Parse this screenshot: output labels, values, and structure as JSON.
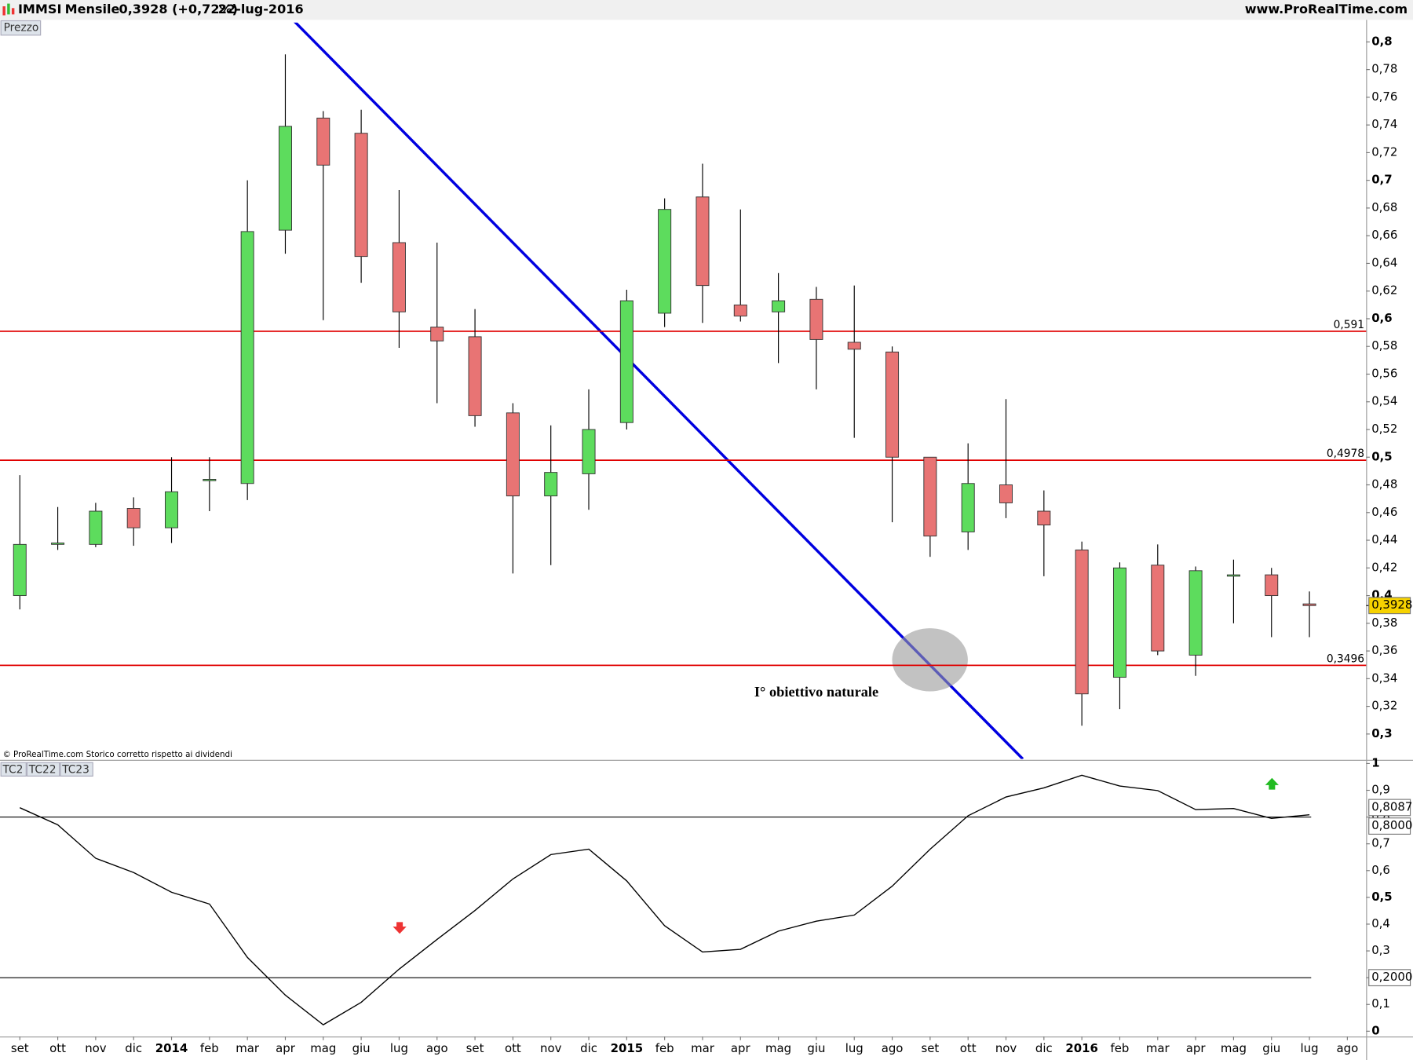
{
  "header": {
    "symbol": "IMMSI",
    "period": "Mensile",
    "quote": "0,3928 (+0,72%)",
    "date": "22-lug-2016",
    "site": "www.ProRealTime.com"
  },
  "chart_data": [
    {
      "type": "candlestick",
      "panel_label": "Prezzo",
      "note": "© ProRealTime.com  Storico corretto rispetto ai dividendi",
      "annotation": "I° obiettivo naturale",
      "categories": [
        "set",
        "ott",
        "nov",
        "dic",
        "2014",
        "feb",
        "mar",
        "apr",
        "mag",
        "giu",
        "lug",
        "ago",
        "set",
        "ott",
        "nov",
        "dic",
        "2015",
        "feb",
        "mar",
        "apr",
        "mag",
        "giu",
        "lug",
        "ago",
        "set",
        "ott",
        "nov",
        "dic",
        "2016",
        "feb",
        "mar",
        "apr",
        "mag",
        "giu",
        "lug",
        "ago"
      ],
      "open": [
        0.4,
        0.438,
        0.437,
        0.463,
        0.449,
        0.484,
        0.481,
        0.664,
        0.745,
        0.734,
        0.655,
        0.594,
        0.587,
        0.532,
        0.472,
        0.488,
        0.525,
        0.604,
        0.688,
        0.61,
        0.605,
        0.614,
        0.583,
        0.576,
        0.5,
        0.446,
        0.48,
        0.461,
        0.433,
        0.341,
        0.422,
        0.357,
        0.415,
        0.415,
        0.394,
        null
      ],
      "high": [
        0.487,
        0.464,
        0.467,
        0.471,
        0.5,
        0.5,
        0.7,
        0.791,
        0.75,
        0.751,
        0.693,
        0.655,
        0.607,
        0.539,
        0.523,
        0.549,
        0.621,
        0.687,
        0.712,
        0.679,
        0.633,
        0.623,
        0.624,
        0.58,
        0.5,
        0.51,
        0.542,
        0.476,
        0.439,
        0.424,
        0.437,
        0.421,
        0.426,
        0.42,
        0.403,
        null
      ],
      "low": [
        0.39,
        0.433,
        0.435,
        0.436,
        0.438,
        0.461,
        0.469,
        0.647,
        0.599,
        0.626,
        0.579,
        0.539,
        0.522,
        0.416,
        0.422,
        0.462,
        0.52,
        0.594,
        0.597,
        0.598,
        0.568,
        0.549,
        0.514,
        0.453,
        0.428,
        0.433,
        0.456,
        0.414,
        0.306,
        0.318,
        0.357,
        0.342,
        0.38,
        0.37,
        0.37,
        null
      ],
      "close": [
        0.437,
        0.438,
        0.461,
        0.449,
        0.475,
        0.484,
        0.663,
        0.739,
        0.711,
        0.645,
        0.605,
        0.584,
        0.53,
        0.472,
        0.489,
        0.52,
        0.613,
        0.679,
        0.624,
        0.602,
        0.613,
        0.585,
        0.578,
        0.5,
        0.443,
        0.481,
        0.467,
        0.451,
        0.329,
        0.42,
        0.36,
        0.418,
        0.415,
        0.4,
        0.3928,
        null
      ],
      "up_color": "#5ddc5d",
      "down_color": "#e87474",
      "ylim": [
        0.282,
        0.814
      ],
      "yticks": [
        {
          "value": 0.3,
          "label": "0,3"
        },
        {
          "value": 0.32,
          "label": "0,32"
        },
        {
          "value": 0.34,
          "label": "0,34"
        },
        {
          "value": 0.36,
          "label": "0,36"
        },
        {
          "value": 0.38,
          "label": "0,38"
        },
        {
          "value": 0.4,
          "label": "0,4"
        },
        {
          "value": 0.42,
          "label": "0,42"
        },
        {
          "value": 0.44,
          "label": "0,44"
        },
        {
          "value": 0.46,
          "label": "0,46"
        },
        {
          "value": 0.48,
          "label": "0,48"
        },
        {
          "value": 0.5,
          "label": "0,5"
        },
        {
          "value": 0.52,
          "label": "0,52"
        },
        {
          "value": 0.54,
          "label": "0,54"
        },
        {
          "value": 0.56,
          "label": "0,56"
        },
        {
          "value": 0.58,
          "label": "0,58"
        },
        {
          "value": 0.6,
          "label": "0,6"
        },
        {
          "value": 0.62,
          "label": "0,62"
        },
        {
          "value": 0.64,
          "label": "0,64"
        },
        {
          "value": 0.66,
          "label": "0,66"
        },
        {
          "value": 0.68,
          "label": "0,68"
        },
        {
          "value": 0.7,
          "label": "0,7"
        },
        {
          "value": 0.72,
          "label": "0,72"
        },
        {
          "value": 0.74,
          "label": "0,74"
        },
        {
          "value": 0.76,
          "label": "0,76"
        },
        {
          "value": 0.78,
          "label": "0,78"
        },
        {
          "value": 0.8,
          "label": "0,8"
        }
      ],
      "hlines": [
        {
          "value": 0.591,
          "label": "0,591"
        },
        {
          "value": 0.4978,
          "label": "0,4978"
        },
        {
          "value": 0.3496,
          "label": "0,3496"
        }
      ],
      "hline_color": "#e00000",
      "last": {
        "value": 0.3928,
        "label": "0,3928"
      }
    },
    {
      "type": "line",
      "panel_labels": [
        "TC2",
        "TC22",
        "TC23"
      ],
      "values": [
        0.835,
        0.771,
        0.646,
        0.593,
        0.519,
        0.475,
        0.276,
        0.135,
        0.024,
        0.108,
        0.232,
        0.343,
        0.451,
        0.569,
        0.66,
        0.68,
        0.562,
        0.394,
        0.296,
        0.306,
        0.374,
        0.411,
        0.434,
        0.542,
        0.68,
        0.805,
        0.875,
        0.909,
        0.956,
        0.916,
        0.899,
        0.828,
        0.832,
        0.795,
        0.8087,
        null
      ],
      "color": "#000000",
      "ylim": [
        -0.02,
        1.007
      ],
      "yticks": [
        0,
        {
          "value": 0.1,
          "label": "0,1"
        },
        {
          "value": 0.2,
          "label": "0,2"
        },
        {
          "value": 0.3,
          "label": "0,3"
        },
        {
          "value": 0.4,
          "label": "0,4"
        },
        {
          "value": 0.5,
          "label": "0,5"
        },
        {
          "value": 0.6,
          "label": "0,6"
        },
        {
          "value": 0.7,
          "label": "0,7"
        },
        {
          "value": 0.8,
          "label": "0,8"
        },
        {
          "value": 0.9,
          "label": "0,9"
        },
        1
      ],
      "hlines": [
        {
          "value": 0.8,
          "label": "0,8000"
        },
        {
          "value": 0.2,
          "label": "0,2000"
        }
      ],
      "last": {
        "value": 0.8087,
        "label": "0,8087"
      }
    }
  ]
}
